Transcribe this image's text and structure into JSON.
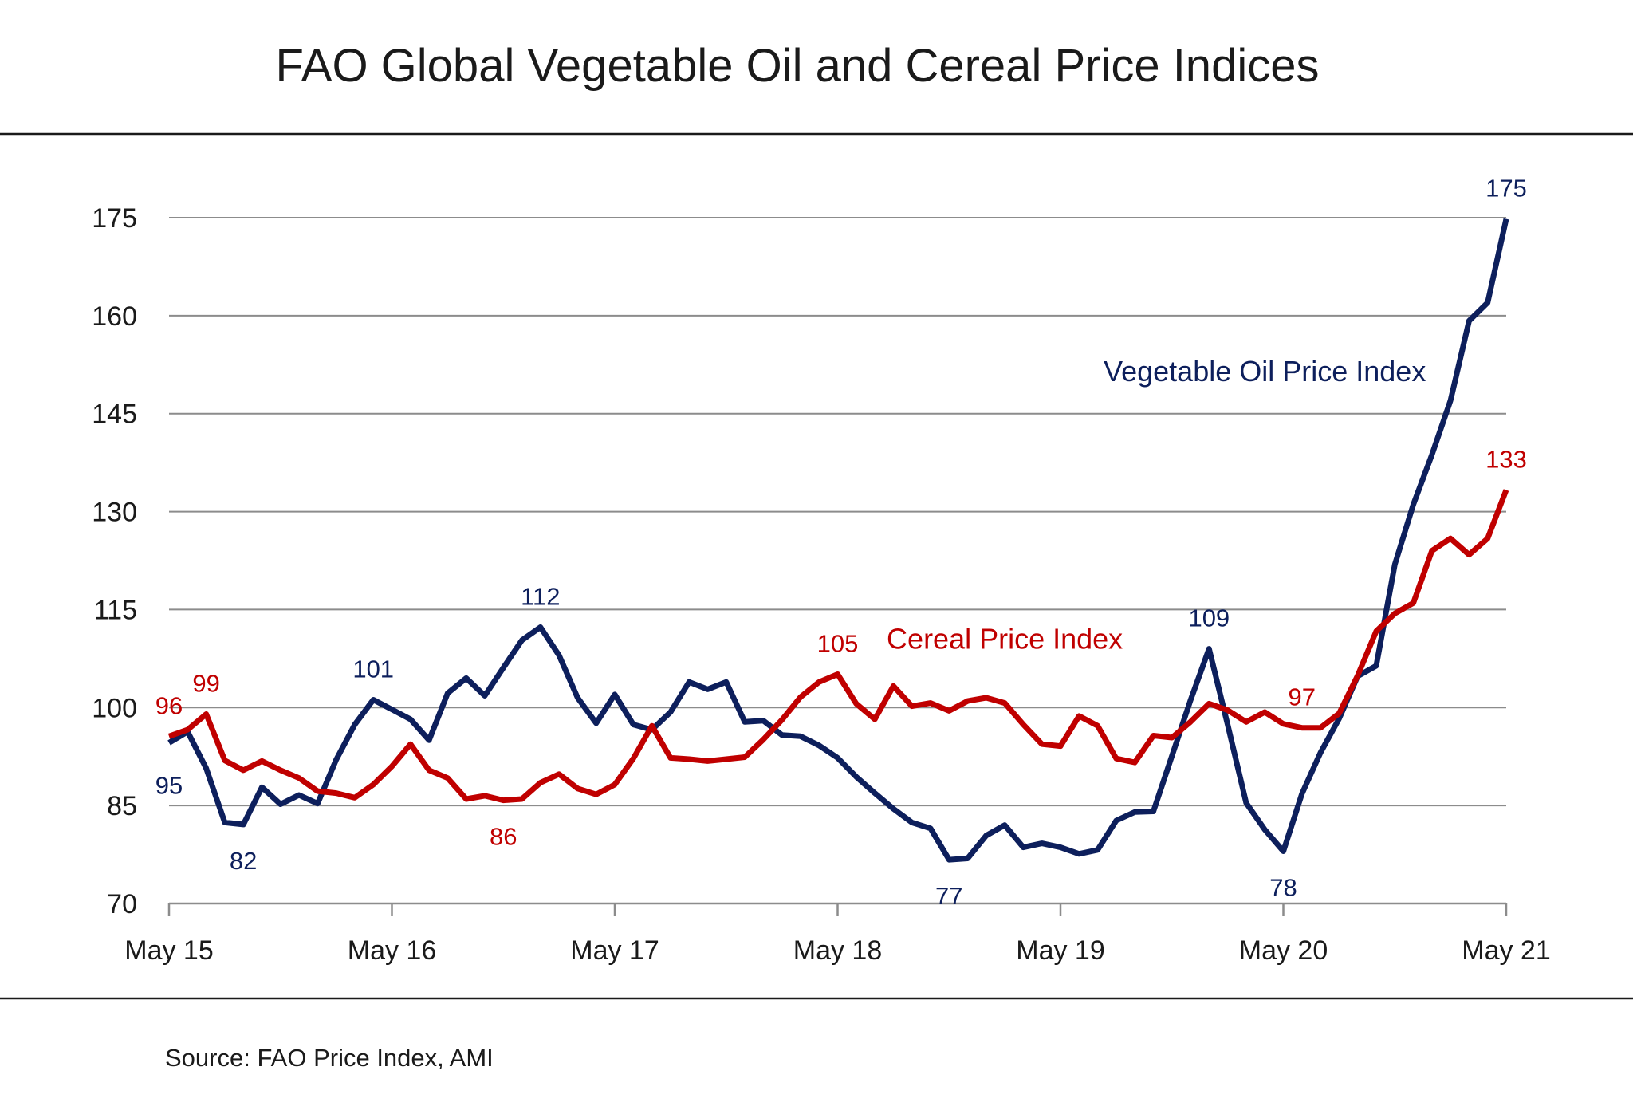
{
  "chart_data": {
    "type": "line",
    "title": "FAO Global Vegetable Oil and Cereal Price Indices",
    "source": "Source: FAO Price Index, AMI",
    "x_tick_labels": [
      "May 15",
      "May 16",
      "May 17",
      "May 18",
      "May 19",
      "May 20",
      "May 21"
    ],
    "y_ticks": [
      70,
      85,
      100,
      115,
      130,
      145,
      160,
      175
    ],
    "ylim": [
      70,
      175
    ],
    "x_range_months": [
      0,
      72
    ],
    "grid": "horizontal",
    "series": [
      {
        "name": "Vegetable Oil Price Index",
        "color": "#0d1f5c",
        "x": [
          0,
          1,
          2,
          3,
          4,
          5,
          6,
          7,
          8,
          9,
          10,
          11,
          12,
          13,
          14,
          15,
          16,
          17,
          18,
          19,
          20,
          21,
          22,
          23,
          24,
          25,
          26,
          27,
          28,
          29,
          30,
          31,
          32,
          33,
          34,
          35,
          36,
          37,
          38,
          39,
          40,
          41,
          42,
          43,
          44,
          45,
          46,
          47,
          48,
          49,
          50,
          51,
          52,
          53,
          54,
          55,
          56,
          57,
          58,
          59,
          60,
          61,
          62,
          63,
          64,
          65,
          66,
          67,
          68,
          69,
          70,
          71,
          72
        ],
        "values": [
          94.6,
          96.3,
          90.7,
          82.4,
          82.1,
          87.8,
          85.2,
          86.6,
          85.3,
          92,
          97.4,
          101.2,
          99.7,
          98.2,
          95,
          102.2,
          104.5,
          101.8,
          106.1,
          110.3,
          112.3,
          108,
          101.5,
          97.6,
          102,
          97.4,
          96.6,
          99.3,
          103.9,
          102.8,
          103.9,
          97.8,
          98,
          95.8,
          95.6,
          94.2,
          92.3,
          89.4,
          86.9,
          84.5,
          82.4,
          81.5,
          76.7,
          76.9,
          80.4,
          82,
          78.6,
          79.2,
          78.6,
          77.6,
          78.2,
          82.7,
          84,
          84.1,
          92.6,
          101.1,
          109,
          97.4,
          85.4,
          81.3,
          78,
          86.8,
          93.1,
          98.3,
          104.8,
          106.4,
          121.9,
          131.1,
          138.7,
          147,
          159.2,
          162,
          174.8
        ]
      },
      {
        "name": "Cereal Price Index",
        "color": "#c00000",
        "x": [
          0,
          1,
          2,
          3,
          4,
          5,
          6,
          7,
          8,
          9,
          10,
          11,
          12,
          13,
          14,
          15,
          16,
          17,
          18,
          19,
          20,
          21,
          22,
          23,
          24,
          25,
          26,
          27,
          28,
          29,
          30,
          31,
          32,
          33,
          34,
          35,
          36,
          37,
          38,
          39,
          40,
          41,
          42,
          43,
          44,
          45,
          46,
          47,
          48,
          49,
          50,
          51,
          52,
          53,
          54,
          55,
          56,
          57,
          58,
          59,
          60,
          61,
          62,
          63,
          64,
          65,
          66,
          67,
          68,
          69,
          70,
          71,
          72
        ],
        "values": [
          95.6,
          96.6,
          99,
          91.9,
          90.4,
          91.8,
          90.4,
          89.2,
          87.2,
          86.9,
          86.2,
          88.2,
          91,
          94.4,
          90.4,
          89.2,
          86,
          86.5,
          85.8,
          86,
          88.5,
          89.8,
          87.6,
          86.7,
          88.2,
          92.2,
          97.2,
          92.3,
          92.1,
          91.8,
          92.1,
          92.4,
          95.1,
          98.1,
          101.6,
          103.9,
          105.1,
          100.6,
          98.2,
          103.3,
          100.2,
          100.7,
          99.5,
          101,
          101.5,
          100.7,
          97.4,
          94.4,
          94.1,
          98.7,
          97.2,
          92.2,
          91.6,
          95.7,
          95.4,
          97.8,
          100.6,
          99.6,
          97.8,
          99.3,
          97.5,
          96.9,
          96.9,
          99.1,
          104.9,
          111.7,
          114.4,
          116,
          124,
          125.9,
          123.4,
          125.9,
          133.3
        ]
      }
    ],
    "data_labels": [
      {
        "series": "Vegetable Oil Price Index",
        "x": 0,
        "value": "95",
        "place": "below-left"
      },
      {
        "series": "Vegetable Oil Price Index",
        "x": 4,
        "value": "82",
        "place": "below"
      },
      {
        "series": "Vegetable Oil Price Index",
        "x": 11,
        "value": "101",
        "place": "above"
      },
      {
        "series": "Vegetable Oil Price Index",
        "x": 20,
        "value": "112",
        "place": "above"
      },
      {
        "series": "Vegetable Oil Price Index",
        "x": 42,
        "value": "77",
        "place": "below"
      },
      {
        "series": "Vegetable Oil Price Index",
        "x": 56,
        "value": "109",
        "place": "above"
      },
      {
        "series": "Vegetable Oil Price Index",
        "x": 60,
        "value": "78",
        "place": "below"
      },
      {
        "series": "Vegetable Oil Price Index",
        "x": 72,
        "value": "175",
        "place": "above"
      },
      {
        "series": "Cereal Price Index",
        "x": 0,
        "value": "96",
        "place": "above"
      },
      {
        "series": "Cereal Price Index",
        "x": 2,
        "value": "99",
        "place": "above"
      },
      {
        "series": "Cereal Price Index",
        "x": 18,
        "value": "86",
        "place": "below"
      },
      {
        "series": "Cereal Price Index",
        "x": 36,
        "value": "105",
        "place": "above"
      },
      {
        "series": "Cereal Price Index",
        "x": 61,
        "value": "97",
        "place": "above"
      },
      {
        "series": "Cereal Price Index",
        "x": 72,
        "value": "133",
        "place": "above"
      }
    ],
    "series_labels": [
      {
        "series": "Vegetable Oil Price Index",
        "text": "Vegetable Oil Price Index",
        "x": 59,
        "y": 150
      },
      {
        "series": "Cereal Price Index",
        "text": "Cereal Price Index",
        "x": 45,
        "y": 109
      }
    ]
  }
}
